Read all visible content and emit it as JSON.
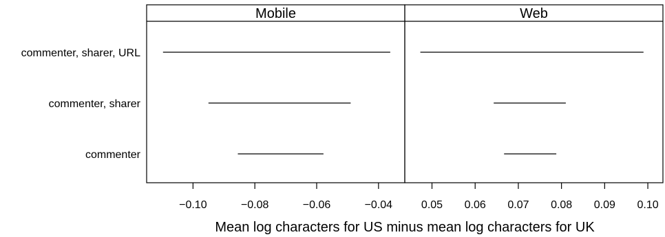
{
  "chart_data": {
    "type": "interval",
    "xlabel": "Mean log characters for US minus mean log characters for UK",
    "categories": [
      "commenter, sharer, URL",
      "commenter, sharer",
      "commenter"
    ],
    "panels": [
      {
        "title": "Mobile",
        "xlim": [
          -0.115,
          -0.0315
        ],
        "ticks": [
          -0.1,
          -0.08,
          -0.06,
          -0.04
        ],
        "tick_labels": [
          "−0.10",
          "−0.08",
          "−0.06",
          "−0.04"
        ],
        "intervals": [
          {
            "category": "commenter, sharer, URL",
            "low": -0.1097,
            "high": -0.0362
          },
          {
            "category": "commenter, sharer",
            "low": -0.095,
            "high": -0.049
          },
          {
            "category": "commenter",
            "low": -0.0855,
            "high": -0.0578
          }
        ]
      },
      {
        "title": "Web",
        "xlim": [
          0.0437,
          0.1035
        ],
        "ticks": [
          0.05,
          0.06,
          0.07,
          0.08,
          0.09,
          0.1
        ],
        "tick_labels": [
          "0.05",
          "0.06",
          "0.07",
          "0.08",
          "0.09",
          "0.10"
        ],
        "intervals": [
          {
            "category": "commenter, sharer, URL",
            "low": 0.0473,
            "high": 0.099
          },
          {
            "category": "commenter, sharer",
            "low": 0.0643,
            "high": 0.081
          },
          {
            "category": "commenter",
            "low": 0.0667,
            "high": 0.0788
          }
        ]
      }
    ],
    "grid": false,
    "legend": "none"
  }
}
